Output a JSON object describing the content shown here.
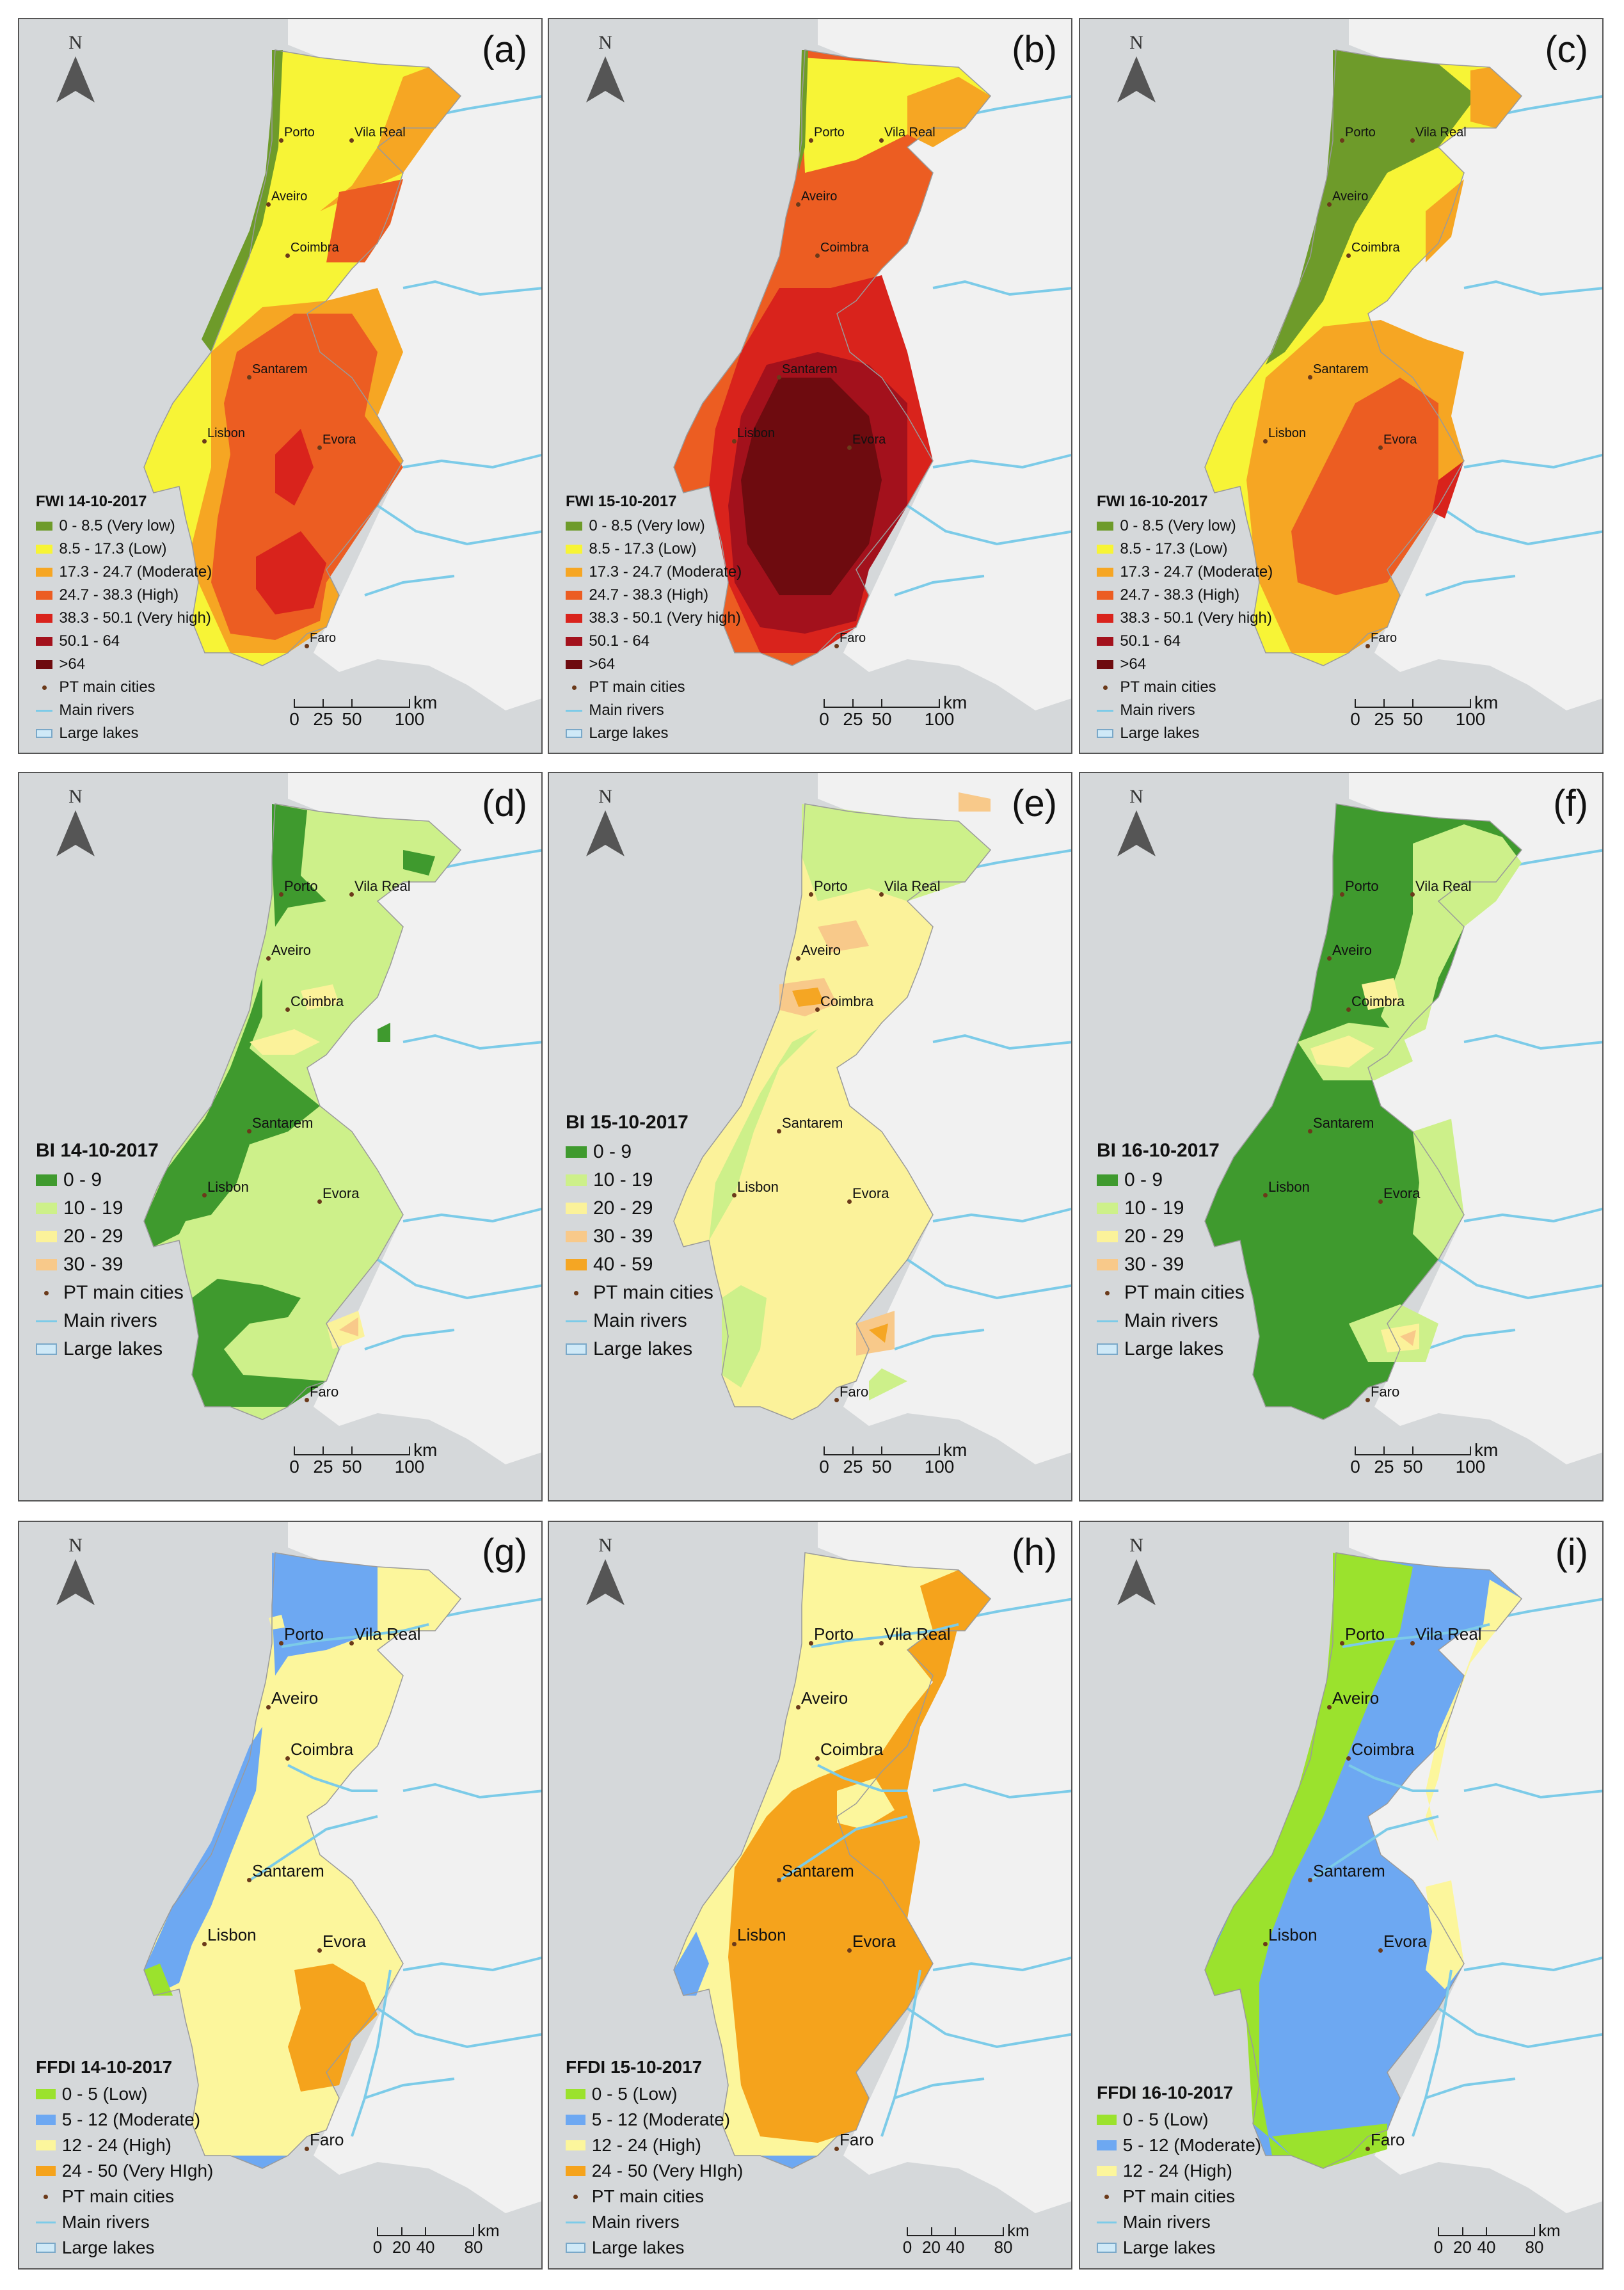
{
  "north_label": "N",
  "legend_common": {
    "cities": "PT main cities",
    "rivers": "Main rivers",
    "lakes": "Large lakes"
  },
  "scale": {
    "unit": "km",
    "fwi_bi_ticks": [
      "0",
      "25",
      "50",
      "100"
    ],
    "ffdi_ticks": [
      "0",
      "20",
      "40",
      "80"
    ]
  },
  "colors": {
    "sea": "#d5d8da",
    "land_foreign": "#f1f1f1",
    "river": "#7ccbe8",
    "city_dot": "#6b3a1a"
  },
  "cities": [
    "Porto",
    "Vila Real",
    "Aveiro",
    "Coimbra",
    "Santarem",
    "Lisbon",
    "Evora",
    "Faro"
  ],
  "panels": [
    {
      "label": "(a)",
      "index": "FWI",
      "title": "FWI 14-10-2017",
      "classes": [
        {
          "label": "0 - 8.5 (Very low)",
          "color": "#6e9b2a"
        },
        {
          "label": "8.5 - 17.3 (Low)",
          "color": "#f7f436"
        },
        {
          "label": "17.3 - 24.7 (Moderate)",
          "color": "#f6a623"
        },
        {
          "label": "24.7 - 38.3 (High)",
          "color": "#ec5d22"
        },
        {
          "label": "38.3 - 50.1 (Very high)",
          "color": "#d9231c"
        },
        {
          "label": "50.1 - 64",
          "color": "#a3111c"
        },
        {
          "label": ">64",
          "color": "#6e0b0f"
        }
      ]
    },
    {
      "label": "(b)",
      "index": "FWI",
      "title": "FWI 15-10-2017",
      "classes": [
        {
          "label": "0 - 8.5 (Very low)",
          "color": "#6e9b2a"
        },
        {
          "label": "8.5 - 17.3 (Low)",
          "color": "#f7f436"
        },
        {
          "label": "17.3 - 24.7 (Moderate)",
          "color": "#f6a623"
        },
        {
          "label": "24.7 - 38.3 (High)",
          "color": "#ec5d22"
        },
        {
          "label": "38.3 - 50.1 (Very high)",
          "color": "#d9231c"
        },
        {
          "label": "50.1 - 64",
          "color": "#a3111c"
        },
        {
          "label": ">64",
          "color": "#6e0b0f"
        }
      ]
    },
    {
      "label": "(c)",
      "index": "FWI",
      "title": "FWI 16-10-2017",
      "classes": [
        {
          "label": "0 - 8.5 (Very low)",
          "color": "#6e9b2a"
        },
        {
          "label": "8.5 - 17.3 (Low)",
          "color": "#f7f436"
        },
        {
          "label": "17.3 - 24.7 (Moderate)",
          "color": "#f6a623"
        },
        {
          "label": "24.7 - 38.3 (High)",
          "color": "#ec5d22"
        },
        {
          "label": "38.3 - 50.1 (Very high)",
          "color": "#d9231c"
        },
        {
          "label": "50.1 - 64",
          "color": "#a3111c"
        },
        {
          "label": ">64",
          "color": "#6e0b0f"
        }
      ]
    },
    {
      "label": "(d)",
      "index": "BI",
      "title": "BI 14-10-2017",
      "classes": [
        {
          "label": "0 - 9",
          "color": "#3f9a2e"
        },
        {
          "label": "10 - 19",
          "color": "#cdf08a"
        },
        {
          "label": "20 - 29",
          "color": "#fbf29a"
        },
        {
          "label": "30 - 39",
          "color": "#f8c98a"
        }
      ]
    },
    {
      "label": "(e)",
      "index": "BI",
      "title": "BI 15-10-2017",
      "classes": [
        {
          "label": "0 - 9",
          "color": "#3f9a2e"
        },
        {
          "label": "10 - 19",
          "color": "#cdf08a"
        },
        {
          "label": "20 - 29",
          "color": "#fbf29a"
        },
        {
          "label": "30 - 39",
          "color": "#f8c98a"
        },
        {
          "label": "40 - 59",
          "color": "#f5a623"
        }
      ]
    },
    {
      "label": "(f)",
      "index": "BI",
      "title": "BI 16-10-2017",
      "classes": [
        {
          "label": "0 - 9",
          "color": "#3f9a2e"
        },
        {
          "label": "10 - 19",
          "color": "#cdf08a"
        },
        {
          "label": "20 - 29",
          "color": "#fbf29a"
        },
        {
          "label": "30 - 39",
          "color": "#f8c98a"
        }
      ]
    },
    {
      "label": "(g)",
      "index": "FFDI",
      "title": "FFDI 14-10-2017",
      "classes": [
        {
          "label": "0 - 5 (Low)",
          "color": "#9be22d"
        },
        {
          "label": "5 - 12 (Moderate)",
          "color": "#6da8f2"
        },
        {
          "label": "12 - 24 (High)",
          "color": "#fcf69c"
        },
        {
          "label": "24 - 50 (Very HIgh)",
          "color": "#f5a31c"
        }
      ]
    },
    {
      "label": "(h)",
      "index": "FFDI",
      "title": "FFDI 15-10-2017",
      "classes": [
        {
          "label": "0 - 5 (Low)",
          "color": "#9be22d"
        },
        {
          "label": "5 - 12 (Moderate)",
          "color": "#6da8f2"
        },
        {
          "label": "12 - 24 (High)",
          "color": "#fcf69c"
        },
        {
          "label": "24 - 50 (Very HIgh)",
          "color": "#f5a31c"
        }
      ]
    },
    {
      "label": "(i)",
      "index": "FFDI",
      "title": "FFDI 16-10-2017",
      "classes": [
        {
          "label": "0 - 5 (Low)",
          "color": "#9be22d"
        },
        {
          "label": "5 - 12 (Moderate)",
          "color": "#6da8f2"
        },
        {
          "label": "12 - 24 (High)",
          "color": "#fcf69c"
        }
      ]
    }
  ]
}
